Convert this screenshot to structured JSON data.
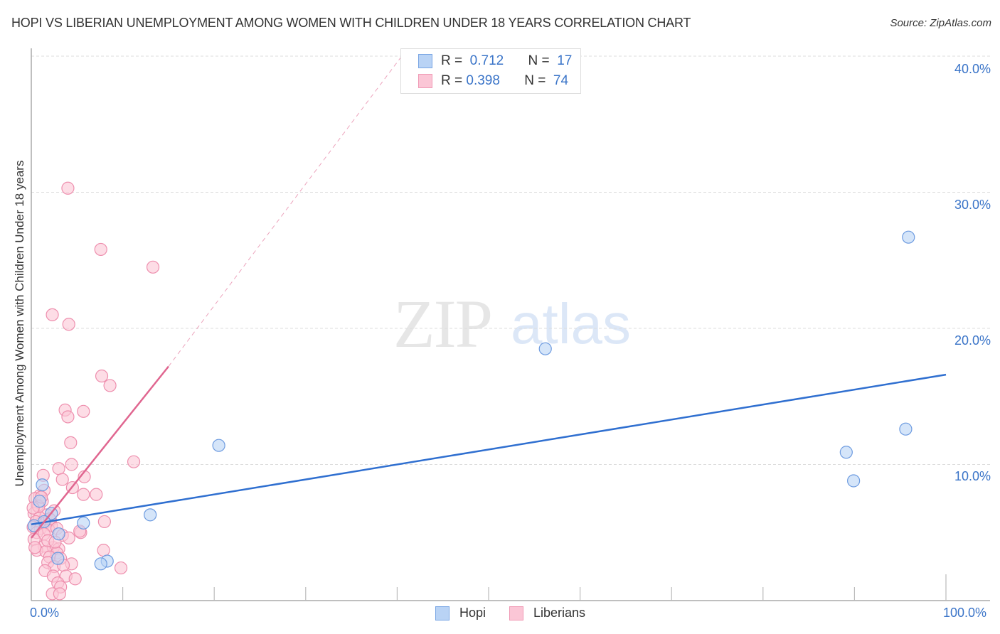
{
  "header": {
    "title": "HOPI VS LIBERIAN UNEMPLOYMENT AMONG WOMEN WITH CHILDREN UNDER 18 YEARS CORRELATION CHART",
    "source": "Source: ZipAtlas.com"
  },
  "watermark": {
    "zip": "ZIP",
    "atlas": "atlas"
  },
  "axes": {
    "ylabel": "Unemployment Among Women with Children Under 18 years",
    "yticks": [
      "10.0%",
      "20.0%",
      "30.0%",
      "40.0%"
    ],
    "xticks": [
      "0.0%",
      "100.0%"
    ]
  },
  "legend": {
    "rows": [
      {
        "r_label": "R =",
        "r_value": "0.712",
        "n_label": "N =",
        "n_value": "17"
      },
      {
        "r_label": "R =",
        "r_value": "0.398",
        "n_label": "N =",
        "n_value": "74"
      }
    ],
    "series": [
      "Hopi",
      "Liberians"
    ]
  },
  "colors": {
    "hopi_fill": "#b9d3f5",
    "hopi_stroke": "#6d9be0",
    "hopi_line": "#2f6fd0",
    "liberian_fill": "#fbc6d6",
    "liberian_stroke": "#ee8fae",
    "liberian_line": "#e06690",
    "tick_text": "#3a74c8"
  },
  "chart_data": {
    "type": "scatter",
    "title": "HOPI VS LIBERIAN UNEMPLOYMENT AMONG WOMEN WITH CHILDREN UNDER 18 YEARS CORRELATION CHART",
    "xlabel": "",
    "ylabel": "Unemployment Among Women with Children Under 18 years",
    "xlim": [
      0,
      100
    ],
    "ylim": [
      0,
      42
    ],
    "grid": true,
    "legend_position": "bottom-center",
    "series": [
      {
        "name": "Hopi",
        "R": 0.712,
        "N": 17,
        "trend": {
          "x": [
            0,
            100
          ],
          "y": [
            5.6,
            16.6
          ]
        },
        "points": [
          [
            56.2,
            18.5
          ],
          [
            95.9,
            26.7
          ],
          [
            95.6,
            12.6
          ],
          [
            89.1,
            10.9
          ],
          [
            89.9,
            8.8
          ],
          [
            20.5,
            11.4
          ],
          [
            13.0,
            6.3
          ],
          [
            5.7,
            5.7
          ],
          [
            8.3,
            2.9
          ],
          [
            7.6,
            2.7
          ],
          [
            1.2,
            8.5
          ],
          [
            2.2,
            6.4
          ],
          [
            3.0,
            4.9
          ],
          [
            0.9,
            7.3
          ],
          [
            1.4,
            5.8
          ],
          [
            2.9,
            3.1
          ],
          [
            0.3,
            5.5
          ]
        ]
      },
      {
        "name": "Liberians",
        "R": 0.398,
        "N": 74,
        "trend": {
          "x": [
            0,
            15
          ],
          "y": [
            4.6,
            17.2
          ],
          "dashed_extension_to": [
            40.5,
            40.0
          ]
        },
        "points": [
          [
            4.0,
            30.3
          ],
          [
            7.6,
            25.8
          ],
          [
            13.3,
            24.5
          ],
          [
            2.3,
            21.0
          ],
          [
            4.1,
            20.3
          ],
          [
            7.7,
            16.5
          ],
          [
            8.6,
            15.8
          ],
          [
            3.7,
            14.0
          ],
          [
            5.7,
            13.9
          ],
          [
            4.0,
            13.5
          ],
          [
            4.3,
            11.6
          ],
          [
            11.2,
            10.2
          ],
          [
            4.4,
            10.0
          ],
          [
            3.0,
            9.7
          ],
          [
            5.8,
            9.1
          ],
          [
            1.3,
            9.2
          ],
          [
            3.4,
            8.9
          ],
          [
            4.5,
            8.3
          ],
          [
            1.4,
            8.1
          ],
          [
            0.9,
            7.7
          ],
          [
            5.7,
            7.8
          ],
          [
            7.1,
            7.8
          ],
          [
            0.4,
            7.5
          ],
          [
            1.2,
            7.3
          ],
          [
            0.7,
            7.0
          ],
          [
            2.5,
            6.6
          ],
          [
            0.3,
            6.4
          ],
          [
            1.7,
            6.3
          ],
          [
            0.9,
            6.1
          ],
          [
            2.1,
            5.9
          ],
          [
            0.5,
            5.8
          ],
          [
            1.5,
            5.7
          ],
          [
            2.2,
            5.5
          ],
          [
            0.2,
            5.4
          ],
          [
            1.0,
            5.3
          ],
          [
            1.9,
            5.2
          ],
          [
            2.8,
            5.3
          ],
          [
            0.6,
            5.0
          ],
          [
            1.4,
            4.9
          ],
          [
            3.4,
            4.8
          ],
          [
            5.4,
            5.0
          ],
          [
            8.0,
            5.8
          ],
          [
            0.3,
            4.5
          ],
          [
            4.1,
            4.6
          ],
          [
            5.3,
            5.1
          ],
          [
            1.4,
            4.0
          ],
          [
            2.4,
            3.9
          ],
          [
            3.0,
            3.8
          ],
          [
            0.6,
            3.7
          ],
          [
            1.6,
            3.6
          ],
          [
            2.8,
            3.5
          ],
          [
            7.9,
            3.7
          ],
          [
            2.0,
            3.2
          ],
          [
            3.2,
            3.1
          ],
          [
            1.8,
            2.8
          ],
          [
            4.4,
            2.7
          ],
          [
            2.5,
            2.5
          ],
          [
            3.5,
            2.6
          ],
          [
            9.8,
            2.4
          ],
          [
            1.5,
            2.2
          ],
          [
            2.4,
            1.8
          ],
          [
            3.8,
            1.8
          ],
          [
            4.8,
            1.6
          ],
          [
            2.9,
            1.3
          ],
          [
            3.2,
            1.0
          ],
          [
            2.3,
            0.5
          ],
          [
            3.1,
            0.5
          ],
          [
            0.8,
            6.9
          ],
          [
            1.1,
            7.6
          ],
          [
            0.2,
            6.8
          ],
          [
            1.8,
            4.4
          ],
          [
            2.6,
            4.3
          ],
          [
            0.4,
            3.9
          ],
          [
            2.0,
            6.0
          ]
        ]
      }
    ]
  }
}
